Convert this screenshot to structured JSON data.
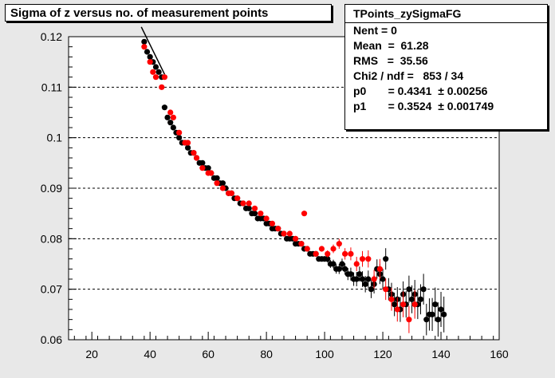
{
  "title": "Sigma of z versus no. of measurement points",
  "stats": {
    "name": "TPoints_zySigmaFG",
    "rows": [
      {
        "label": "Nent = 0"
      },
      {
        "label": "Mean  =  61.28"
      },
      {
        "label": "RMS   =  35.56"
      },
      {
        "label": "Chi2 / ndf =   853 / 34"
      },
      {
        "label": "p0       = 0.4341  ± 0.00256"
      },
      {
        "label": "p1       = 0.3524  ± 0.001749"
      }
    ]
  },
  "chart_data": {
    "type": "scatter",
    "title": "Sigma of z versus no. of measurement points",
    "xlim": [
      12,
      160
    ],
    "ylim": [
      0.06,
      0.12
    ],
    "xticks": [
      20,
      40,
      60,
      80,
      100,
      120,
      140,
      160
    ],
    "yticks": [
      "0.06",
      "0.07",
      "0.08",
      "0.09",
      "0.1",
      "0.11",
      "0.12"
    ],
    "grid": "horizontal-dashed",
    "colors": {
      "black_series": "#000000",
      "red_series": "#ff0000",
      "fit": "#000000",
      "frame_bg": "#ffffff",
      "pad_bg": "#e8e8e8"
    },
    "fit": {
      "p0": 0.4341,
      "p1": 0.3524,
      "xrange": [
        37,
        45
      ]
    },
    "series": [
      {
        "color": "black",
        "x": [
          38,
          39,
          40,
          41,
          42,
          43,
          44,
          45,
          46,
          47,
          48,
          49,
          50,
          51,
          52,
          53,
          54,
          55,
          56,
          57,
          58,
          59,
          60,
          61,
          62,
          63,
          64,
          65,
          66,
          67,
          68,
          69,
          70,
          71,
          72,
          73,
          74,
          75,
          76,
          77,
          78,
          79,
          80,
          81,
          82,
          83,
          84,
          85,
          86,
          87,
          88,
          89,
          90,
          91,
          92,
          93,
          94,
          95,
          96,
          97,
          98,
          99,
          100,
          101,
          102,
          103,
          104,
          105,
          106,
          107,
          108,
          109,
          110,
          111,
          112,
          113,
          114,
          115,
          116,
          117,
          118,
          119,
          120,
          121,
          122,
          123,
          124,
          125,
          126,
          127,
          128,
          129,
          130,
          131,
          132,
          133,
          134,
          135,
          136,
          137,
          138,
          139,
          140,
          141
        ],
        "y": [
          0.119,
          0.117,
          0.116,
          0.115,
          0.114,
          0.113,
          0.112,
          0.106,
          0.104,
          0.103,
          0.102,
          0.101,
          0.1,
          0.099,
          0.099,
          0.098,
          0.097,
          0.097,
          0.096,
          0.095,
          0.095,
          0.094,
          0.094,
          0.093,
          0.092,
          0.092,
          0.091,
          0.091,
          0.09,
          0.089,
          0.089,
          0.088,
          0.088,
          0.087,
          0.087,
          0.086,
          0.086,
          0.085,
          0.085,
          0.084,
          0.084,
          0.084,
          0.083,
          0.083,
          0.082,
          0.082,
          0.082,
          0.081,
          0.081,
          0.08,
          0.08,
          0.08,
          0.079,
          0.079,
          0.079,
          0.078,
          0.078,
          0.077,
          0.077,
          0.077,
          0.076,
          0.076,
          0.076,
          0.076,
          0.075,
          0.075,
          0.074,
          0.074,
          0.075,
          0.074,
          0.073,
          0.073,
          0.072,
          0.072,
          0.073,
          0.072,
          0.071,
          0.072,
          0.07,
          0.071,
          0.074,
          0.073,
          0.072,
          0.076,
          0.07,
          0.069,
          0.067,
          0.068,
          0.066,
          0.069,
          0.067,
          0.07,
          0.068,
          0.069,
          0.067,
          0.068,
          0.07,
          0.064,
          0.065,
          0.065,
          0.067,
          0.064,
          0.066,
          0.065
        ]
      },
      {
        "color": "red",
        "x": [
          38,
          40,
          41,
          42,
          44,
          45,
          47,
          48,
          50,
          52,
          53,
          55,
          56,
          58,
          60,
          61,
          63,
          65,
          67,
          68,
          70,
          72,
          74,
          76,
          78,
          80,
          82,
          84,
          86,
          88,
          90,
          92,
          93,
          94,
          97,
          99,
          101,
          103,
          105,
          107,
          109,
          111,
          113,
          115,
          117,
          119,
          121,
          123,
          125,
          127,
          129,
          131
        ],
        "y": [
          0.118,
          0.115,
          0.113,
          0.112,
          0.11,
          0.112,
          0.105,
          0.104,
          0.101,
          0.099,
          0.099,
          0.097,
          0.096,
          0.094,
          0.093,
          0.093,
          0.091,
          0.09,
          0.089,
          0.089,
          0.088,
          0.087,
          0.087,
          0.086,
          0.085,
          0.084,
          0.083,
          0.082,
          0.081,
          0.081,
          0.08,
          0.079,
          0.085,
          0.078,
          0.077,
          0.078,
          0.077,
          0.078,
          0.079,
          0.077,
          0.077,
          0.075,
          0.076,
          0.076,
          0.072,
          0.074,
          0.07,
          0.068,
          0.066,
          0.067,
          0.064,
          0.067
        ]
      }
    ]
  }
}
